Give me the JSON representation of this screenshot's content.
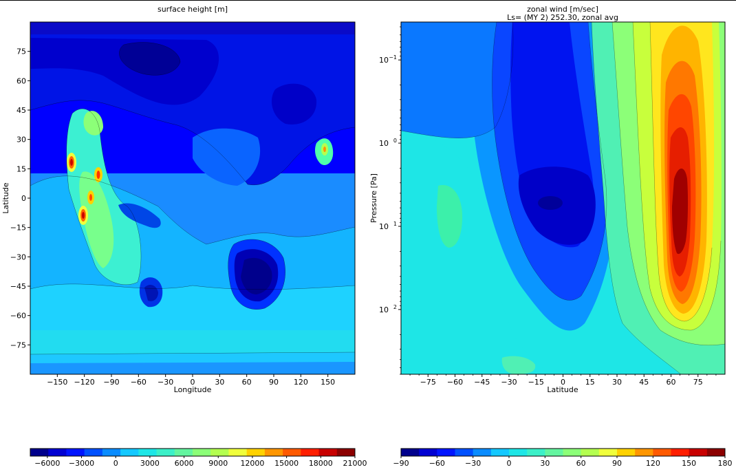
{
  "chart_data": [
    {
      "type": "heatmap",
      "title": "surface height [m]",
      "xlabel": "Longitude",
      "ylabel": "Latitude",
      "xlim": [
        -180,
        180
      ],
      "ylim": [
        -90,
        90
      ],
      "xticks": [
        "−150",
        "−120",
        "−90",
        "−60",
        "−30",
        "0",
        "30",
        "60",
        "90",
        "120",
        "150"
      ],
      "yticks": [
        "75",
        "60",
        "45",
        "30",
        "15",
        "0",
        "−15",
        "−30",
        "−45",
        "−60",
        "−75"
      ],
      "colorbar": {
        "ticks": [
          "−6000",
          "−3000",
          "0",
          "3000",
          "6000",
          "9000",
          "12000",
          "15000",
          "18000",
          "21000"
        ],
        "range": [
          -7500,
          21000
        ]
      },
      "features": [
        {
          "x": -134,
          "y": 18,
          "value": 18000
        },
        {
          "x": -121,
          "y": -9,
          "value": 18000
        },
        {
          "x": -113,
          "y": 1,
          "value": 15000
        },
        {
          "x": -103,
          "y": 12,
          "value": 15000
        },
        {
          "x": -112,
          "y": 40,
          "value": 7000
        },
        {
          "x": 147,
          "y": 24,
          "value": 12000
        },
        {
          "x": 69,
          "y": -42,
          "value": -7000
        },
        {
          "x": -45,
          "y": -48,
          "value": -4000
        },
        {
          "x": -75,
          "y": -8,
          "value": -3000
        },
        {
          "x": -25,
          "y": 72,
          "value": -5500
        },
        {
          "x": 110,
          "y": 45,
          "value": -4500
        }
      ]
    },
    {
      "type": "heatmap",
      "title": "zonal wind [m/sec]",
      "subtitle": "Ls= (MY 2) 252.30, zonal avg",
      "xlabel": "Latitude",
      "ylabel": "Pressure [Pa]",
      "xlim": [
        -90,
        90
      ],
      "ylim": [
        600,
        0.035
      ],
      "yscale": "log",
      "xticks": [
        "−75",
        "−60",
        "−45",
        "−30",
        "−15",
        "0",
        "15",
        "30",
        "45",
        "60",
        "75"
      ],
      "yticks": [
        {
          "base": "10",
          "exp": "−1"
        },
        {
          "base": "10",
          "exp": "0"
        },
        {
          "base": "10",
          "exp": "1"
        },
        {
          "base": "10",
          "exp": "2"
        }
      ],
      "colorbar": {
        "ticks": [
          "−90",
          "−60",
          "−30",
          "0",
          "30",
          "60",
          "90",
          "120",
          "150",
          "180"
        ],
        "range": [
          -90,
          180
        ]
      },
      "features": [
        {
          "x": 63,
          "y": 7,
          "value": 175
        },
        {
          "x": -5,
          "y": 5.5,
          "value": -65
        },
        {
          "x": -62,
          "y": 8,
          "value": 25
        }
      ]
    }
  ]
}
